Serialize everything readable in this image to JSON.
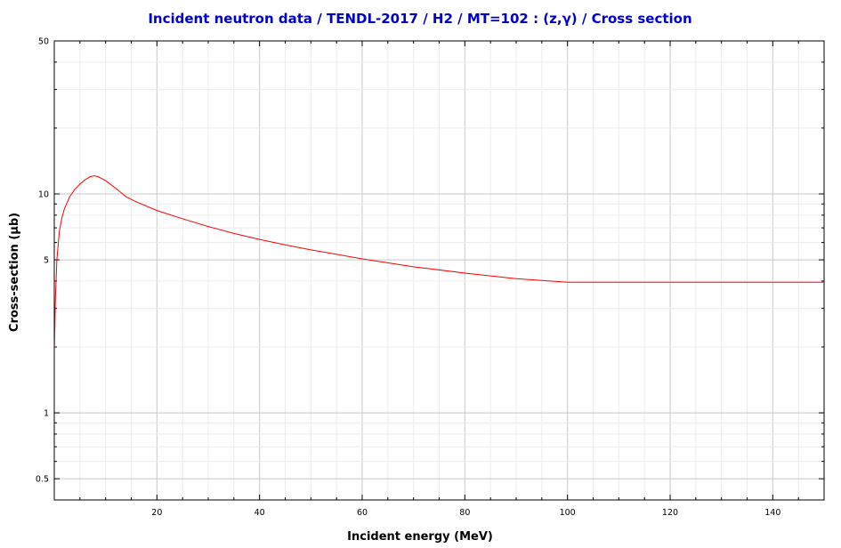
{
  "chart_data": {
    "type": "line",
    "title": "Incident neutron data / TENDL-2017 / H2 / MT=102 : (z,γ) / Cross section",
    "xlabel": "Incident energy (MeV)",
    "ylabel": "Cross-section (µb)",
    "xlim": [
      0,
      150
    ],
    "ylim": [
      0.4,
      50
    ],
    "yscale": "log",
    "grid": true,
    "x_ticks": [
      20,
      40,
      60,
      80,
      100,
      120,
      140
    ],
    "x_tick_labels": [
      "20",
      "40",
      "60",
      "80",
      "100",
      "120",
      "140"
    ],
    "y_ticks": [
      0.5,
      1,
      5,
      10,
      50
    ],
    "y_tick_labels": [
      "0.5",
      "1",
      "5",
      "10",
      "50"
    ],
    "series": [
      {
        "color": "#ff0000",
        "x": [
          0.05,
          0.2,
          0.5,
          1,
          1.5,
          2,
          3,
          4,
          5,
          6,
          7,
          7.8,
          8.5,
          10,
          12,
          14,
          16,
          20,
          25,
          30,
          35,
          40,
          45,
          50,
          55,
          60,
          70,
          80,
          90,
          100,
          110,
          120,
          130,
          140,
          150
        ],
        "y": [
          2.0,
          3.2,
          5.0,
          6.8,
          7.8,
          8.6,
          9.7,
          10.5,
          11.1,
          11.6,
          12.0,
          12.1,
          12.0,
          11.5,
          10.6,
          9.7,
          9.2,
          8.4,
          7.7,
          7.1,
          6.6,
          6.2,
          5.85,
          5.55,
          5.3,
          5.05,
          4.65,
          4.35,
          4.1,
          3.95,
          3.95,
          3.95,
          3.95,
          3.95,
          3.95
        ]
      }
    ]
  }
}
